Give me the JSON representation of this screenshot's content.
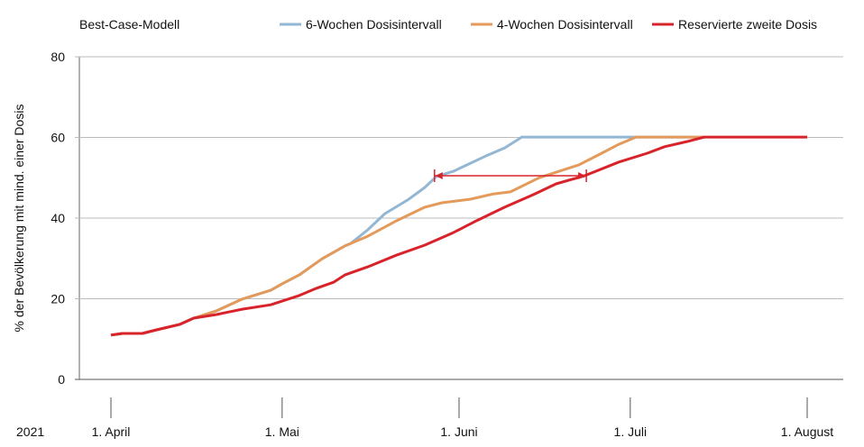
{
  "chart_data": {
    "type": "line",
    "title": "Best-Case-Modell",
    "xlabel": "",
    "ylabel": "% der Bevölkerung mit mind. einer Dosis",
    "year_label": "2021",
    "x_unit": "days since 1. April 2021",
    "xlim": [
      -5,
      128
    ],
    "ylim": [
      0,
      80
    ],
    "yticks": [
      0,
      20,
      40,
      60,
      80
    ],
    "xticks": [
      {
        "day": 0,
        "label": "1. April"
      },
      {
        "day": 30,
        "label": "1. Mai"
      },
      {
        "day": 61,
        "label": "1. Juni"
      },
      {
        "day": 91,
        "label": "1. Juli"
      },
      {
        "day": 122,
        "label": "1. August"
      }
    ],
    "grid": true,
    "legend_position": "top",
    "series": [
      {
        "name": "6-Wochen Dosisintervall",
        "color": "#93b7d3",
        "points": [
          [
            0,
            11
          ],
          [
            2,
            11.4
          ],
          [
            5.5,
            11.4
          ],
          [
            8,
            12.3
          ],
          [
            12,
            13.6
          ],
          [
            14.5,
            15.2
          ],
          [
            18.5,
            17
          ],
          [
            23,
            19.9
          ],
          [
            28,
            22.1
          ],
          [
            30,
            23.7
          ],
          [
            33,
            25.9
          ],
          [
            37,
            29.9
          ],
          [
            41,
            33.1
          ],
          [
            42,
            33.7
          ],
          [
            45,
            37.1
          ],
          [
            48,
            41.1
          ],
          [
            52,
            44.5
          ],
          [
            55,
            47.6
          ],
          [
            57,
            50.3
          ],
          [
            60,
            51.6
          ],
          [
            63,
            53.6
          ],
          [
            66,
            55.6
          ],
          [
            69,
            57.4
          ],
          [
            72,
            60.1
          ],
          [
            104,
            60.1
          ]
        ]
      },
      {
        "name": "4-Wochen Dosisintervall",
        "color": "#e39a5a",
        "points": [
          [
            0,
            11
          ],
          [
            2,
            11.4
          ],
          [
            5.5,
            11.4
          ],
          [
            8,
            12.3
          ],
          [
            12,
            13.6
          ],
          [
            14.5,
            15.2
          ],
          [
            18.5,
            17
          ],
          [
            23,
            19.9
          ],
          [
            28,
            22.1
          ],
          [
            30,
            23.7
          ],
          [
            33,
            25.9
          ],
          [
            37,
            29.9
          ],
          [
            41,
            33.1
          ],
          [
            45,
            35.5
          ],
          [
            50,
            39.3
          ],
          [
            55,
            42.7
          ],
          [
            58,
            43.8
          ],
          [
            63,
            44.7
          ],
          [
            67,
            46
          ],
          [
            70,
            46.5
          ],
          [
            75,
            50
          ],
          [
            82,
            53.2
          ],
          [
            86,
            56.1
          ],
          [
            89,
            58.3
          ],
          [
            92,
            60.1
          ],
          [
            104,
            60.1
          ]
        ]
      },
      {
        "name": "Reservierte zweite Dosis",
        "color": "#d8232a",
        "points": [
          [
            0,
            11
          ],
          [
            2,
            11.4
          ],
          [
            5.5,
            11.4
          ],
          [
            8,
            12.3
          ],
          [
            12,
            13.6
          ],
          [
            14.5,
            15.2
          ],
          [
            18.5,
            16.1
          ],
          [
            23,
            17.4
          ],
          [
            28,
            18.5
          ],
          [
            33,
            20.8
          ],
          [
            36,
            22.6
          ],
          [
            39,
            24.1
          ],
          [
            41,
            25.9
          ],
          [
            45,
            27.9
          ],
          [
            50,
            30.8
          ],
          [
            55,
            33.3
          ],
          [
            60,
            36.4
          ],
          [
            64,
            39.3
          ],
          [
            69,
            42.7
          ],
          [
            74,
            45.8
          ],
          [
            78,
            48.5
          ],
          [
            83,
            50.5
          ],
          [
            89,
            53.9
          ],
          [
            94,
            56.1
          ],
          [
            97,
            57.7
          ],
          [
            101,
            59
          ],
          [
            104,
            60.1
          ],
          [
            122,
            60.1
          ]
        ]
      }
    ],
    "annotations": [
      {
        "type": "double-arrow",
        "from_day": 56.7,
        "to_day": 83.3,
        "value": 50.5,
        "color": "#d8232a"
      }
    ]
  }
}
